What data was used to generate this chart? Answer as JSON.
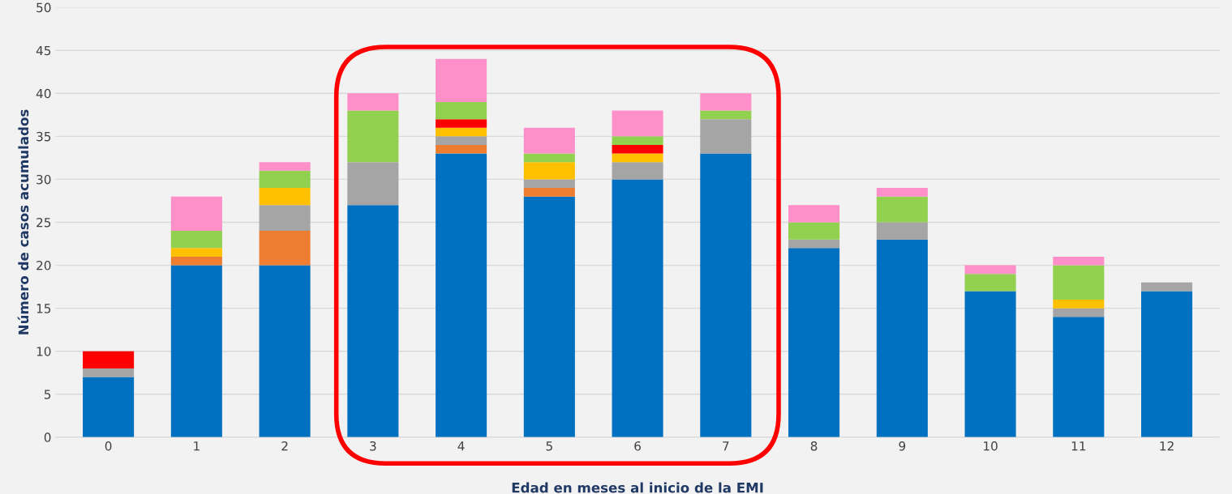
{
  "chart_data": {
    "type": "bar",
    "stacked": true,
    "xlabel": "Edad en meses al inicio de la EMI",
    "ylabel": "Número de casos acumulados",
    "categories": [
      "0",
      "1",
      "2",
      "3",
      "4",
      "5",
      "6",
      "7",
      "8",
      "9",
      "10",
      "11",
      "12"
    ],
    "series": [
      {
        "color": "#0070c0",
        "values": [
          7,
          20,
          20,
          27,
          33,
          28,
          30,
          33,
          22,
          23,
          17,
          14,
          17
        ]
      },
      {
        "color": "#ed7d31",
        "values": [
          0,
          1,
          4,
          0,
          1,
          1,
          0,
          0,
          0,
          0,
          0,
          0,
          0
        ]
      },
      {
        "color": "#a5a5a5",
        "values": [
          1,
          0,
          3,
          5,
          1,
          1,
          2,
          4,
          1,
          2,
          0,
          1,
          1
        ]
      },
      {
        "color": "#ffc000",
        "values": [
          0,
          1,
          2,
          0,
          1,
          2,
          1,
          0,
          0,
          0,
          0,
          1,
          0
        ]
      },
      {
        "color": "#ff0000",
        "values": [
          2,
          0,
          0,
          0,
          1,
          0,
          1,
          0,
          0,
          0,
          0,
          0,
          0
        ]
      },
      {
        "color": "#92d050",
        "values": [
          0,
          2,
          2,
          6,
          2,
          1,
          1,
          1,
          2,
          3,
          2,
          4,
          0
        ]
      },
      {
        "color": "#ff8fc8",
        "values": [
          0,
          4,
          1,
          2,
          5,
          3,
          3,
          2,
          2,
          1,
          1,
          1,
          0
        ]
      }
    ],
    "ylim": [
      0,
      50
    ],
    "yticks": [
      0,
      5,
      10,
      15,
      20,
      25,
      30,
      35,
      40,
      45,
      50
    ],
    "grid": "y"
  }
}
